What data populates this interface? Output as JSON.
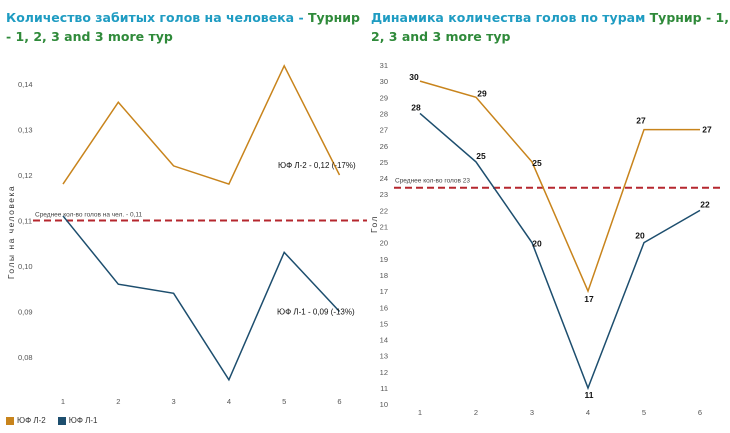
{
  "colors": {
    "title_blue": "#1f9cc2",
    "title_green": "#2f8a3a",
    "series1": "#c8841c",
    "series2": "#1d4e6e",
    "avg_line": "#b5272e"
  },
  "left_title": {
    "part1": "Количество забитых голов на человека - ",
    "part2": "Турнир - 1, 2, 3 and 3 more тур"
  },
  "right_title": {
    "part1": "Динамика количества голов по турам ",
    "part2": "Турнир - 1, 2, 3 and 3 more тур"
  },
  "legend": [
    {
      "label": "ЮФ Л-2",
      "color": "#c8841c"
    },
    {
      "label": "ЮФ Л-1",
      "color": "#1d4e6e"
    }
  ],
  "chart_data": [
    {
      "type": "line",
      "x": [
        1,
        2,
        3,
        4,
        5,
        6
      ],
      "xticks": [
        "1",
        "2",
        "3",
        "4",
        "5",
        "6"
      ],
      "yticks": [
        "0,08",
        "0,09",
        "0,10",
        "0,11",
        "0,12",
        "0,13",
        "0,14"
      ],
      "ylabel": "Голы на человека",
      "ylim": [
        0.075,
        0.15
      ],
      "series": [
        {
          "name": "ЮФ Л-2",
          "values": [
            0.118,
            0.136,
            0.122,
            0.118,
            0.144,
            0.12
          ]
        },
        {
          "name": "ЮФ Л-1",
          "values": [
            0.111,
            0.096,
            0.094,
            0.075,
            0.103,
            0.09
          ]
        }
      ],
      "reference_line": {
        "value": 0.11,
        "label": "Среднее кол-во голов на чел. - 0,11"
      },
      "annotations": [
        {
          "series": "ЮФ Л-2",
          "text": "ЮФ Л-2 - 0,12 (-17%)"
        },
        {
          "series": "ЮФ Л-1",
          "text": "ЮФ Л-1 - 0,09 (-13%)"
        }
      ]
    },
    {
      "type": "line",
      "x": [
        1,
        2,
        3,
        4,
        5,
        6
      ],
      "xticks": [
        "1",
        "2",
        "3",
        "4",
        "5",
        "6"
      ],
      "yticks": [
        "10",
        "11",
        "12",
        "13",
        "14",
        "15",
        "16",
        "17",
        "18",
        "19",
        "20",
        "21",
        "22",
        "23",
        "24",
        "25",
        "26",
        "27",
        "28",
        "29",
        "30",
        "31"
      ],
      "ylabel": "Гол",
      "ylim": [
        10,
        31
      ],
      "series": [
        {
          "name": "ЮФ Л-2",
          "values": [
            30,
            29,
            25,
            17,
            27,
            27
          ],
          "labels": [
            "30",
            "29",
            "25",
            "17",
            "27",
            "27"
          ]
        },
        {
          "name": "ЮФ Л-1",
          "values": [
            28,
            25,
            20,
            11,
            20,
            22
          ],
          "labels": [
            "28",
            "25",
            "20",
            "11",
            "20",
            "22"
          ]
        }
      ],
      "reference_line": {
        "value": 23.4,
        "label": "Среднее кол-во голов 23"
      }
    }
  ]
}
